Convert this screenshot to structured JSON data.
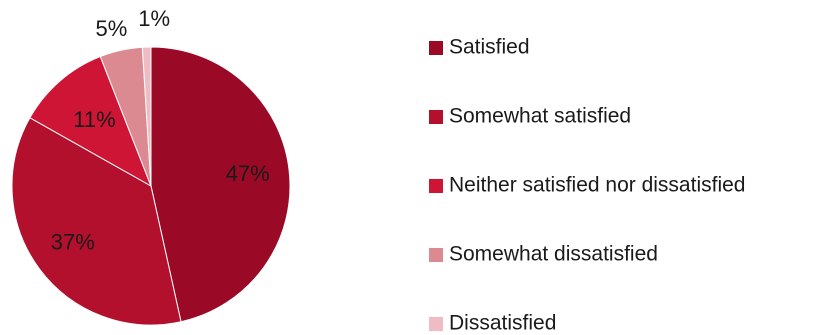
{
  "chart_data": {
    "type": "pie",
    "title": "",
    "legend_position": "right",
    "slices": [
      {
        "label": "Satisfied",
        "value": 47,
        "display": "47%",
        "color": "#9A0A26"
      },
      {
        "label": "Somewhat satisfied",
        "value": 37,
        "display": "37%",
        "color": "#B3102E"
      },
      {
        "label": "Neither satisfied nor dissatisfied",
        "value": 11,
        "display": "11%",
        "color": "#CE1536"
      },
      {
        "label": "Somewhat dissatisfied",
        "value": 5,
        "display": "5%",
        "color": "#DB8A92"
      },
      {
        "label": "Dissatisfied",
        "value": 1,
        "display": "1%",
        "color": "#EFBCC4"
      }
    ]
  }
}
